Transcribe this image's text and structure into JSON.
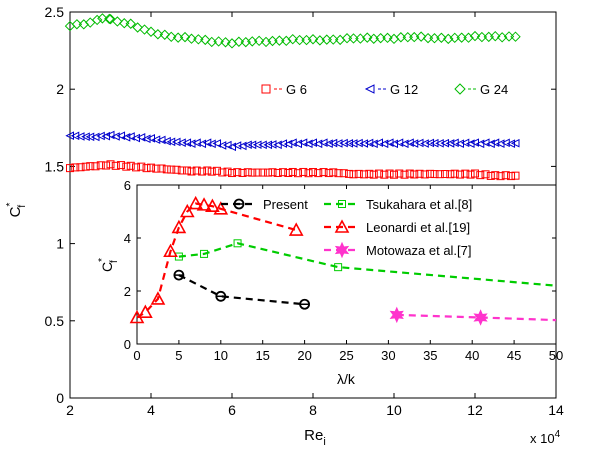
{
  "chart_data": [
    {
      "type": "scatter",
      "title": "",
      "xlabel": "Re",
      "xlabel_sub": "i",
      "ylabel": "C",
      "ylabel_sup": "*",
      "ylabel_sub": "f",
      "x_scale_note": "x 10",
      "x_scale_exp": "4",
      "xlim": [
        2,
        14
      ],
      "ylim": [
        0,
        2.5
      ],
      "xticks": [
        2,
        4,
        6,
        8,
        10,
        12,
        14
      ],
      "yticks": [
        0,
        0.5,
        1,
        1.5,
        2,
        2.5
      ],
      "grid": false,
      "legend_position": "upper-right, horizontal",
      "series": [
        {
          "name": "G 6",
          "marker": "square",
          "color": "#ff0000",
          "x_range": [
            2.0,
            13.0
          ],
          "points": [
            [
              2.0,
              1.49
            ],
            [
              2.5,
              1.5
            ],
            [
              3.0,
              1.51
            ],
            [
              3.5,
              1.5
            ],
            [
              4.0,
              1.49
            ],
            [
              4.5,
              1.48
            ],
            [
              5.0,
              1.47
            ],
            [
              5.5,
              1.47
            ],
            [
              6.0,
              1.46
            ],
            [
              6.5,
              1.46
            ],
            [
              7.0,
              1.46
            ],
            [
              7.5,
              1.46
            ],
            [
              8.0,
              1.46
            ],
            [
              8.5,
              1.46
            ],
            [
              9.0,
              1.45
            ],
            [
              9.5,
              1.45
            ],
            [
              10.0,
              1.45
            ],
            [
              10.5,
              1.45
            ],
            [
              11.0,
              1.45
            ],
            [
              11.5,
              1.45
            ],
            [
              12.0,
              1.45
            ],
            [
              12.5,
              1.44
            ],
            [
              13.0,
              1.44
            ]
          ]
        },
        {
          "name": "G 12",
          "marker": "triangle-left",
          "color": "#0000cc",
          "points": [
            [
              2.0,
              1.7
            ],
            [
              2.5,
              1.69
            ],
            [
              3.0,
              1.7
            ],
            [
              3.5,
              1.69
            ],
            [
              4.0,
              1.68
            ],
            [
              4.5,
              1.66
            ],
            [
              5.0,
              1.65
            ],
            [
              5.5,
              1.65
            ],
            [
              6.0,
              1.63
            ],
            [
              6.5,
              1.64
            ],
            [
              7.0,
              1.64
            ],
            [
              7.5,
              1.65
            ],
            [
              8.0,
              1.65
            ],
            [
              8.5,
              1.65
            ],
            [
              9.0,
              1.65
            ],
            [
              9.5,
              1.65
            ],
            [
              10.0,
              1.65
            ],
            [
              10.5,
              1.65
            ],
            [
              11.0,
              1.65
            ],
            [
              11.5,
              1.65
            ],
            [
              12.0,
              1.65
            ],
            [
              12.5,
              1.65
            ],
            [
              13.0,
              1.65
            ]
          ]
        },
        {
          "name": "G 24",
          "marker": "diamond",
          "color": "#00bb00",
          "points": [
            [
              2.0,
              2.41
            ],
            [
              2.5,
              2.43
            ],
            [
              2.8,
              2.46
            ],
            [
              3.0,
              2.45
            ],
            [
              3.5,
              2.42
            ],
            [
              4.0,
              2.37
            ],
            [
              4.5,
              2.34
            ],
            [
              5.0,
              2.33
            ],
            [
              5.5,
              2.31
            ],
            [
              6.0,
              2.3
            ],
            [
              6.5,
              2.31
            ],
            [
              7.0,
              2.31
            ],
            [
              7.5,
              2.32
            ],
            [
              8.0,
              2.32
            ],
            [
              8.5,
              2.32
            ],
            [
              9.0,
              2.33
            ],
            [
              9.5,
              2.33
            ],
            [
              10.0,
              2.33
            ],
            [
              10.5,
              2.34
            ],
            [
              11.0,
              2.33
            ],
            [
              11.5,
              2.33
            ],
            [
              12.0,
              2.34
            ],
            [
              12.5,
              2.34
            ],
            [
              13.0,
              2.34
            ]
          ]
        }
      ]
    },
    {
      "type": "line",
      "title": "",
      "xlabel": "λ/k",
      "ylabel": "C",
      "ylabel_sup": "*",
      "ylabel_sub": "f",
      "xlim": [
        0,
        50
      ],
      "ylim": [
        0,
        6
      ],
      "xticks": [
        0,
        5,
        10,
        15,
        20,
        25,
        30,
        35,
        40,
        45,
        50
      ],
      "yticks": [
        0,
        2,
        4,
        6
      ],
      "grid": false,
      "legend_position": "top, two columns",
      "series": [
        {
          "name": "Present",
          "marker": "circle-with-bar",
          "color": "#000000",
          "points": [
            [
              5,
              2.6
            ],
            [
              10,
              1.8
            ],
            [
              20,
              1.5
            ]
          ]
        },
        {
          "name": "Tsukahara et al.[8]",
          "marker": "square",
          "color": "#00cc00",
          "points": [
            [
              5,
              3.3
            ],
            [
              8,
              3.4
            ],
            [
              12,
              3.8
            ],
            [
              24,
              2.9
            ],
            [
              50,
              2.2
            ]
          ]
        },
        {
          "name": "Leonardi et al.[19]",
          "marker": "triangle",
          "color": "#ff0000",
          "points": [
            [
              0,
              1.0
            ],
            [
              1,
              1.2
            ],
            [
              2.5,
              1.7
            ],
            [
              4,
              3.5
            ],
            [
              5,
              4.4
            ],
            [
              6,
              5.0
            ],
            [
              7,
              5.3
            ],
            [
              8,
              5.25
            ],
            [
              9,
              5.2
            ],
            [
              10,
              5.1
            ],
            [
              19,
              4.3
            ]
          ]
        },
        {
          "name": "Motowaza et al.[7]",
          "marker": "star",
          "color": "#ff33cc",
          "points": [
            [
              31,
              1.1
            ],
            [
              41,
              1.0
            ],
            [
              50,
              0.9
            ]
          ]
        }
      ]
    }
  ]
}
